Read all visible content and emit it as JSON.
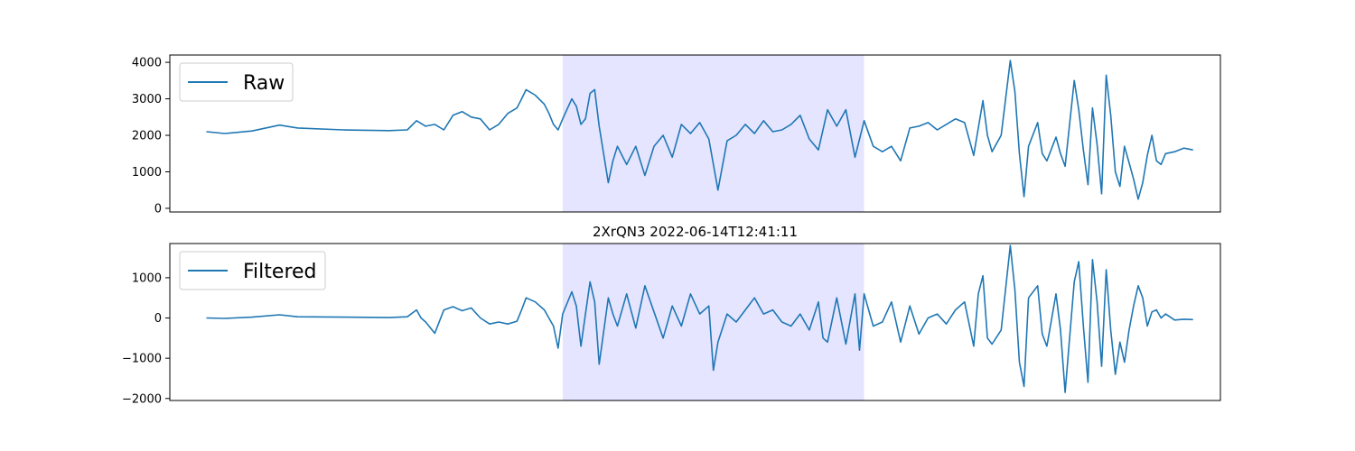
{
  "chart_data": [
    {
      "type": "line",
      "title": "",
      "xlabel": "",
      "ylabel": "",
      "ylim": [
        -100,
        4200
      ],
      "yticks": [
        0,
        1000,
        2000,
        3000,
        4000
      ],
      "ytick_labels": [
        "0",
        "1000",
        "2000",
        "3000",
        "4000"
      ],
      "x_axis_ticks": "none",
      "grid": false,
      "legend_position": "upper-left",
      "highlight_span": {
        "x": [
          0.39,
          0.72
        ],
        "color": "#e5e5ff"
      },
      "series": [
        {
          "name": "Raw",
          "color": "#1f77b4",
          "points": [
            [
              0.0,
              2100
            ],
            [
              0.02,
              2050
            ],
            [
              0.05,
              2120
            ],
            [
              0.08,
              2280
            ],
            [
              0.1,
              2200
            ],
            [
              0.15,
              2150
            ],
            [
              0.2,
              2130
            ],
            [
              0.22,
              2150
            ],
            [
              0.23,
              2400
            ],
            [
              0.24,
              2250
            ],
            [
              0.25,
              2300
            ],
            [
              0.26,
              2150
            ],
            [
              0.27,
              2550
            ],
            [
              0.28,
              2650
            ],
            [
              0.29,
              2500
            ],
            [
              0.3,
              2450
            ],
            [
              0.31,
              2150
            ],
            [
              0.32,
              2300
            ],
            [
              0.33,
              2600
            ],
            [
              0.34,
              2750
            ],
            [
              0.345,
              3000
            ],
            [
              0.35,
              3250
            ],
            [
              0.36,
              3100
            ],
            [
              0.37,
              2850
            ],
            [
              0.375,
              2600
            ],
            [
              0.38,
              2300
            ],
            [
              0.385,
              2150
            ],
            [
              0.39,
              2450
            ],
            [
              0.4,
              3000
            ],
            [
              0.405,
              2800
            ],
            [
              0.41,
              2300
            ],
            [
              0.415,
              2450
            ],
            [
              0.42,
              3150
            ],
            [
              0.425,
              3250
            ],
            [
              0.43,
              2250
            ],
            [
              0.44,
              700
            ],
            [
              0.445,
              1300
            ],
            [
              0.45,
              1700
            ],
            [
              0.46,
              1200
            ],
            [
              0.47,
              1700
            ],
            [
              0.48,
              900
            ],
            [
              0.49,
              1700
            ],
            [
              0.5,
              2000
            ],
            [
              0.51,
              1400
            ],
            [
              0.52,
              2300
            ],
            [
              0.53,
              2050
            ],
            [
              0.54,
              2350
            ],
            [
              0.55,
              1900
            ],
            [
              0.56,
              500
            ],
            [
              0.57,
              1850
            ],
            [
              0.58,
              2000
            ],
            [
              0.59,
              2300
            ],
            [
              0.6,
              2050
            ],
            [
              0.61,
              2400
            ],
            [
              0.62,
              2100
            ],
            [
              0.63,
              2150
            ],
            [
              0.64,
              2300
            ],
            [
              0.65,
              2550
            ],
            [
              0.66,
              1900
            ],
            [
              0.67,
              1600
            ],
            [
              0.68,
              2700
            ],
            [
              0.69,
              2250
            ],
            [
              0.7,
              2700
            ],
            [
              0.71,
              1400
            ],
            [
              0.72,
              2400
            ],
            [
              0.73,
              1700
            ],
            [
              0.74,
              1550
            ],
            [
              0.75,
              1700
            ],
            [
              0.76,
              1300
            ],
            [
              0.77,
              2200
            ],
            [
              0.78,
              2250
            ],
            [
              0.79,
              2350
            ],
            [
              0.8,
              2150
            ],
            [
              0.81,
              2300
            ],
            [
              0.82,
              2450
            ],
            [
              0.83,
              2350
            ],
            [
              0.84,
              1450
            ],
            [
              0.85,
              2950
            ],
            [
              0.855,
              2000
            ],
            [
              0.86,
              1550
            ],
            [
              0.87,
              2000
            ],
            [
              0.88,
              4050
            ],
            [
              0.885,
              3200
            ],
            [
              0.89,
              1500
            ],
            [
              0.895,
              320
            ],
            [
              0.9,
              1700
            ],
            [
              0.91,
              2350
            ],
            [
              0.915,
              1500
            ],
            [
              0.92,
              1300
            ],
            [
              0.93,
              1950
            ],
            [
              0.935,
              1500
            ],
            [
              0.94,
              1150
            ],
            [
              0.95,
              3500
            ],
            [
              0.955,
              2700
            ],
            [
              0.96,
              1600
            ],
            [
              0.965,
              650
            ],
            [
              0.97,
              2750
            ],
            [
              0.975,
              1750
            ],
            [
              0.98,
              400
            ],
            [
              0.985,
              3650
            ],
            [
              0.99,
              2550
            ],
            [
              0.995,
              1000
            ],
            [
              1.0,
              600
            ],
            [
              1.005,
              1700
            ],
            [
              1.01,
              1250
            ],
            [
              1.015,
              800
            ],
            [
              1.02,
              250
            ],
            [
              1.025,
              700
            ],
            [
              1.03,
              1450
            ],
            [
              1.035,
              2000
            ],
            [
              1.04,
              1300
            ],
            [
              1.045,
              1200
            ],
            [
              1.05,
              1500
            ],
            [
              1.06,
              1550
            ],
            [
              1.07,
              1650
            ],
            [
              1.08,
              1600
            ]
          ]
        }
      ]
    },
    {
      "type": "line",
      "title": "2XrQN3 2022-06-14T12:41:11",
      "xlabel": "",
      "ylabel": "",
      "ylim": [
        -2050,
        1850
      ],
      "yticks": [
        -2000,
        -1000,
        0,
        1000
      ],
      "ytick_labels": [
        "−2000",
        "−1000",
        "0",
        "1000"
      ],
      "x_axis_ticks": "none",
      "grid": false,
      "legend_position": "upper-left",
      "highlight_span": {
        "x": [
          0.39,
          0.72
        ],
        "color": "#e5e5ff"
      },
      "series": [
        {
          "name": "Filtered",
          "color": "#1f77b4",
          "points": [
            [
              0.0,
              0
            ],
            [
              0.02,
              -10
            ],
            [
              0.05,
              20
            ],
            [
              0.08,
              80
            ],
            [
              0.1,
              30
            ],
            [
              0.15,
              20
            ],
            [
              0.2,
              10
            ],
            [
              0.22,
              30
            ],
            [
              0.23,
              200
            ],
            [
              0.235,
              0
            ],
            [
              0.24,
              -100
            ],
            [
              0.25,
              -380
            ],
            [
              0.26,
              200
            ],
            [
              0.27,
              280
            ],
            [
              0.28,
              180
            ],
            [
              0.29,
              250
            ],
            [
              0.3,
              0
            ],
            [
              0.31,
              -150
            ],
            [
              0.32,
              -100
            ],
            [
              0.33,
              -150
            ],
            [
              0.34,
              -80
            ],
            [
              0.345,
              200
            ],
            [
              0.35,
              500
            ],
            [
              0.36,
              400
            ],
            [
              0.37,
              200
            ],
            [
              0.38,
              -200
            ],
            [
              0.385,
              -750
            ],
            [
              0.39,
              100
            ],
            [
              0.4,
              650
            ],
            [
              0.405,
              300
            ],
            [
              0.41,
              -700
            ],
            [
              0.415,
              100
            ],
            [
              0.42,
              900
            ],
            [
              0.425,
              400
            ],
            [
              0.43,
              -1150
            ],
            [
              0.44,
              500
            ],
            [
              0.445,
              100
            ],
            [
              0.45,
              -200
            ],
            [
              0.46,
              600
            ],
            [
              0.47,
              -250
            ],
            [
              0.48,
              800
            ],
            [
              0.49,
              150
            ],
            [
              0.5,
              -500
            ],
            [
              0.51,
              300
            ],
            [
              0.52,
              -200
            ],
            [
              0.53,
              600
            ],
            [
              0.54,
              100
            ],
            [
              0.55,
              300
            ],
            [
              0.555,
              -1300
            ],
            [
              0.56,
              -600
            ],
            [
              0.57,
              100
            ],
            [
              0.58,
              -100
            ],
            [
              0.59,
              200
            ],
            [
              0.6,
              500
            ],
            [
              0.61,
              100
            ],
            [
              0.62,
              200
            ],
            [
              0.63,
              -100
            ],
            [
              0.64,
              -200
            ],
            [
              0.65,
              100
            ],
            [
              0.66,
              -300
            ],
            [
              0.67,
              400
            ],
            [
              0.675,
              -500
            ],
            [
              0.68,
              -600
            ],
            [
              0.69,
              500
            ],
            [
              0.7,
              -650
            ],
            [
              0.71,
              600
            ],
            [
              0.715,
              -800
            ],
            [
              0.72,
              600
            ],
            [
              0.725,
              200
            ],
            [
              0.73,
              -200
            ],
            [
              0.74,
              -100
            ],
            [
              0.75,
              400
            ],
            [
              0.76,
              -600
            ],
            [
              0.77,
              300
            ],
            [
              0.78,
              -400
            ],
            [
              0.79,
              0
            ],
            [
              0.8,
              100
            ],
            [
              0.81,
              -150
            ],
            [
              0.82,
              200
            ],
            [
              0.83,
              400
            ],
            [
              0.84,
              -700
            ],
            [
              0.845,
              600
            ],
            [
              0.85,
              1050
            ],
            [
              0.855,
              -500
            ],
            [
              0.86,
              -650
            ],
            [
              0.87,
              -300
            ],
            [
              0.88,
              1800
            ],
            [
              0.885,
              700
            ],
            [
              0.89,
              -1100
            ],
            [
              0.895,
              -1700
            ],
            [
              0.9,
              500
            ],
            [
              0.91,
              800
            ],
            [
              0.915,
              -400
            ],
            [
              0.92,
              -700
            ],
            [
              0.93,
              600
            ],
            [
              0.935,
              -300
            ],
            [
              0.94,
              -1850
            ],
            [
              0.95,
              900
            ],
            [
              0.955,
              1400
            ],
            [
              0.96,
              -200
            ],
            [
              0.965,
              -1600
            ],
            [
              0.97,
              1450
            ],
            [
              0.975,
              400
            ],
            [
              0.98,
              -1200
            ],
            [
              0.985,
              1200
            ],
            [
              0.99,
              -300
            ],
            [
              0.995,
              -1400
            ],
            [
              1.0,
              -600
            ],
            [
              1.005,
              -1100
            ],
            [
              1.01,
              -300
            ],
            [
              1.015,
              300
            ],
            [
              1.02,
              800
            ],
            [
              1.025,
              500
            ],
            [
              1.03,
              -200
            ],
            [
              1.035,
              150
            ],
            [
              1.04,
              200
            ],
            [
              1.045,
              0
            ],
            [
              1.05,
              100
            ],
            [
              1.06,
              -50
            ],
            [
              1.07,
              -30
            ],
            [
              1.08,
              -40
            ]
          ]
        }
      ]
    }
  ]
}
